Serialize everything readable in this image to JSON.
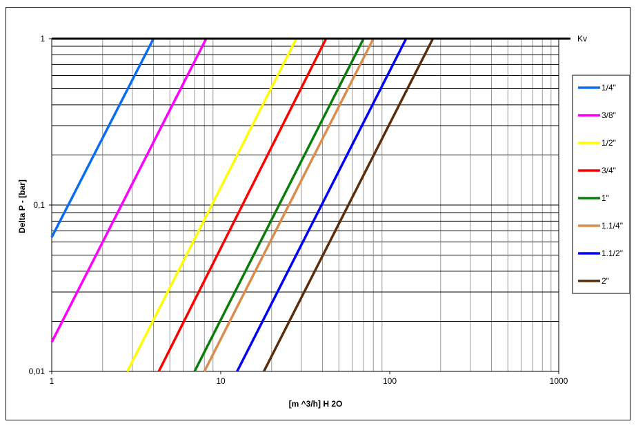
{
  "chart_data": {
    "type": "line",
    "xscale": "log",
    "yscale": "log",
    "xlim": [
      1,
      1000
    ],
    "ylim": [
      0.01,
      1
    ],
    "xlabel": "[m ^3/h] H 2O",
    "ylabel": "Delta P - [bar]",
    "x_ticks": [
      "1",
      "10",
      "100",
      "1000"
    ],
    "y_ticks": [
      "0,01",
      "0,1",
      "1"
    ],
    "top_line_label": "Kv",
    "grid": true,
    "legend_position": "right",
    "series": [
      {
        "name": "1/4\"",
        "color": "#0a6cf0",
        "points": [
          [
            1.0,
            0.064
          ],
          [
            4.0,
            1.0
          ]
        ]
      },
      {
        "name": "3/8\"",
        "color": "#ff00ff",
        "points": [
          [
            1.0,
            0.015
          ],
          [
            8.2,
            1.0
          ]
        ]
      },
      {
        "name": "1/2\"",
        "color": "#ffff00",
        "points": [
          [
            2.8,
            0.01
          ],
          [
            28.0,
            1.0
          ]
        ]
      },
      {
        "name": "3/4\"",
        "color": "#ff0000",
        "points": [
          [
            4.3,
            0.01
          ],
          [
            42.0,
            1.0
          ]
        ]
      },
      {
        "name": "1\"",
        "color": "#0b7d0b",
        "points": [
          [
            7.0,
            0.01
          ],
          [
            70.0,
            1.0
          ]
        ]
      },
      {
        "name": "1.1/4\"",
        "color": "#d98c4c",
        "points": [
          [
            8.0,
            0.01
          ],
          [
            80.0,
            1.0
          ]
        ]
      },
      {
        "name": "1.1/2\"",
        "color": "#0000ff",
        "points": [
          [
            12.5,
            0.01
          ],
          [
            125.0,
            1.0
          ]
        ]
      },
      {
        "name": "2\"",
        "color": "#5a2d0c",
        "points": [
          [
            18.0,
            0.01
          ],
          [
            180.0,
            1.0
          ]
        ]
      }
    ]
  }
}
